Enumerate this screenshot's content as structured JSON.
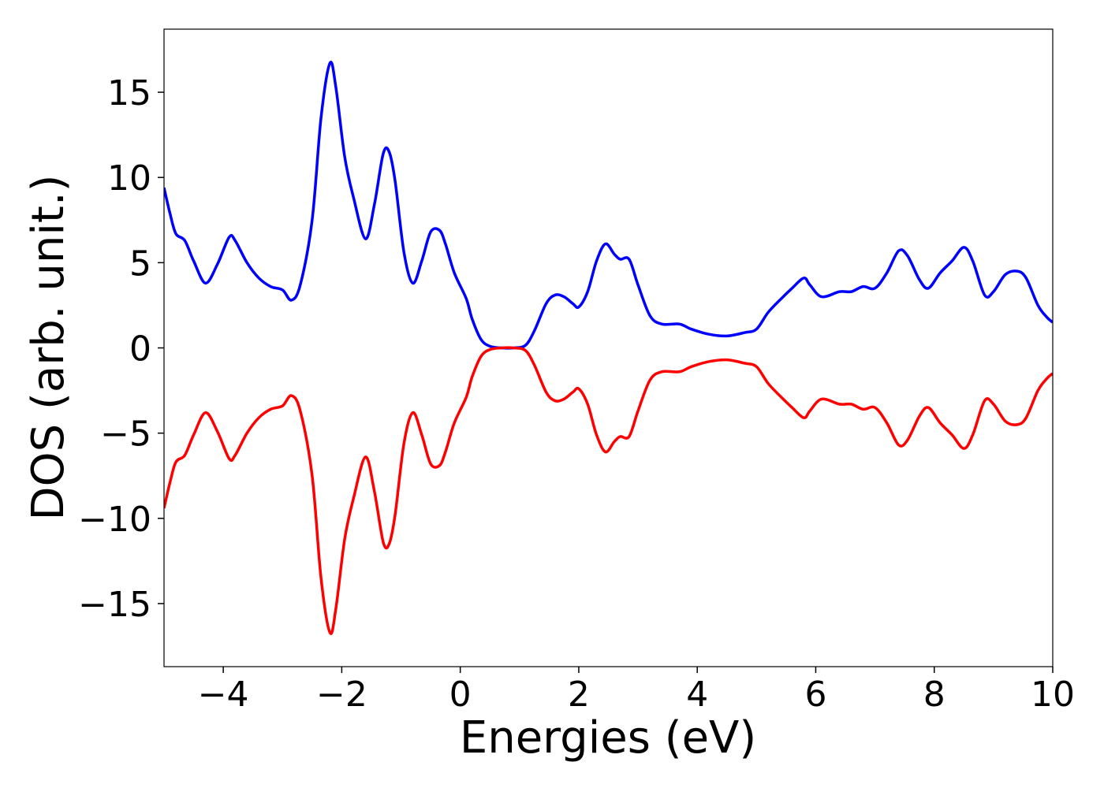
{
  "chart_data": {
    "type": "line",
    "xlabel": "Energies (eV)",
    "ylabel": "DOS (arb. unit.)",
    "x": [
      -5,
      -4.9,
      -4.8,
      -4.65,
      -4.5,
      -4.3,
      -4.1,
      -3.9,
      -3.8,
      -3.6,
      -3.4,
      -3.2,
      -3.0,
      -2.85,
      -2.7,
      -2.5,
      -2.35,
      -2.2,
      -2.1,
      -1.95,
      -1.8,
      -1.6,
      -1.45,
      -1.3,
      -1.2,
      -1.1,
      -0.95,
      -0.8,
      -0.65,
      -0.5,
      -0.35,
      -0.25,
      -0.1,
      0.1,
      0.2,
      0.35,
      0.5,
      0.7,
      0.9,
      1.1,
      1.25,
      1.45,
      1.6,
      1.75,
      1.9,
      2.0,
      2.15,
      2.3,
      2.45,
      2.6,
      2.7,
      2.85,
      3.0,
      3.2,
      3.4,
      3.7,
      3.9,
      4.2,
      4.5,
      4.8,
      5.0,
      5.2,
      5.45,
      5.6,
      5.8,
      5.9,
      6.1,
      6.4,
      6.6,
      6.8,
      7.0,
      7.2,
      7.4,
      7.55,
      7.75,
      7.9,
      8.1,
      8.3,
      8.5,
      8.65,
      8.85,
      9.0,
      9.2,
      9.4,
      9.55,
      9.75,
      9.9,
      10.0
    ],
    "series": [
      {
        "color": "#0000ff",
        "values": [
          9.4,
          7.9,
          6.7,
          6.3,
          5.1,
          3.8,
          4.9,
          6.5,
          6.3,
          5.0,
          4.1,
          3.6,
          3.4,
          2.8,
          3.7,
          7.5,
          13.5,
          16.7,
          15.3,
          11.2,
          8.8,
          6.4,
          8.4,
          11.4,
          11.5,
          9.8,
          5.6,
          3.8,
          5.1,
          6.8,
          6.9,
          6.1,
          4.4,
          2.9,
          1.7,
          0.5,
          0.1,
          0,
          0,
          0.15,
          1.0,
          2.6,
          3.1,
          3.0,
          2.6,
          2.4,
          3.3,
          5.1,
          6.1,
          5.5,
          5.2,
          5.2,
          3.7,
          1.9,
          1.4,
          1.4,
          1.1,
          0.8,
          0.7,
          0.9,
          1.1,
          2.1,
          3.0,
          3.5,
          4.1,
          3.7,
          3.0,
          3.3,
          3.3,
          3.6,
          3.5,
          4.4,
          5.7,
          5.4,
          4.0,
          3.5,
          4.4,
          5.1,
          5.9,
          5.1,
          3.1,
          3.3,
          4.3,
          4.5,
          4.1,
          2.5,
          1.8,
          1.5
        ]
      },
      {
        "color": "#ff0000",
        "values": [
          -9.4,
          -7.9,
          -6.7,
          -6.3,
          -5.1,
          -3.8,
          -4.9,
          -6.5,
          -6.3,
          -5.0,
          -4.1,
          -3.6,
          -3.4,
          -2.8,
          -3.7,
          -7.5,
          -13.5,
          -16.7,
          -15.3,
          -11.2,
          -8.8,
          -6.4,
          -8.4,
          -11.4,
          -11.5,
          -9.8,
          -5.6,
          -3.8,
          -5.1,
          -6.8,
          -6.9,
          -6.1,
          -4.4,
          -2.9,
          -1.7,
          -0.5,
          -0.1,
          0,
          0,
          -0.15,
          -1.0,
          -2.6,
          -3.1,
          -3.0,
          -2.6,
          -2.4,
          -3.3,
          -5.1,
          -6.1,
          -5.5,
          -5.2,
          -5.2,
          -3.7,
          -1.9,
          -1.4,
          -1.4,
          -1.1,
          -0.8,
          -0.7,
          -0.9,
          -1.1,
          -2.1,
          -3.0,
          -3.5,
          -4.1,
          -3.7,
          -3.0,
          -3.3,
          -3.3,
          -3.6,
          -3.5,
          -4.4,
          -5.7,
          -5.4,
          -4.0,
          -3.5,
          -4.4,
          -5.1,
          -5.9,
          -5.1,
          -3.1,
          -3.3,
          -4.3,
          -4.5,
          -4.1,
          -2.5,
          -1.8,
          -1.5
        ]
      }
    ],
    "xlim": [
      -5,
      10
    ],
    "xticks": [
      {
        "value": -4,
        "label": "−4"
      },
      {
        "value": -2,
        "label": "−2"
      },
      0,
      2,
      4,
      6,
      8,
      10
    ],
    "ylim": [
      -18.7,
      18.7
    ],
    "yticks": [
      {
        "value": -15,
        "label": "−15"
      },
      {
        "value": -10,
        "label": "−10"
      },
      {
        "value": -5,
        "label": "−5"
      },
      0,
      5,
      10,
      15
    ],
    "grid": false
  }
}
